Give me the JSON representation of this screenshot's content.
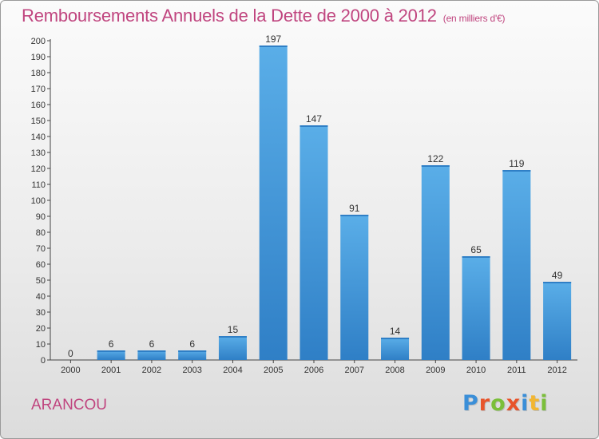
{
  "header": {
    "title": "Remboursements Annuels de la Dette de 2000 à 2012",
    "subtitle": "(en milliers d'€)"
  },
  "commune": "ARANCOU",
  "logo": {
    "text": "Proxiti",
    "colors": [
      "#3b8fd8",
      "#e8542b",
      "#7bbf3a",
      "#e8542b",
      "#3b8fd8",
      "#f2b632",
      "#7bbf3a"
    ]
  },
  "chart_data": {
    "type": "bar",
    "title": "Remboursements Annuels de la Dette de 2000 à 2012",
    "subtitle": "(en milliers d'€)",
    "xlabel": "",
    "ylabel": "",
    "categories": [
      "2000",
      "2001",
      "2002",
      "2003",
      "2004",
      "2005",
      "2006",
      "2007",
      "2008",
      "2009",
      "2010",
      "2011",
      "2012"
    ],
    "values": [
      0,
      6,
      6,
      6,
      15,
      197,
      147,
      91,
      14,
      122,
      65,
      119,
      49
    ],
    "ylim": [
      0,
      200
    ],
    "ytick_step": 10,
    "grid": false,
    "data_labels": true,
    "bar_color_top": "#5aaee8",
    "bar_color_bottom": "#2f7fc6"
  }
}
